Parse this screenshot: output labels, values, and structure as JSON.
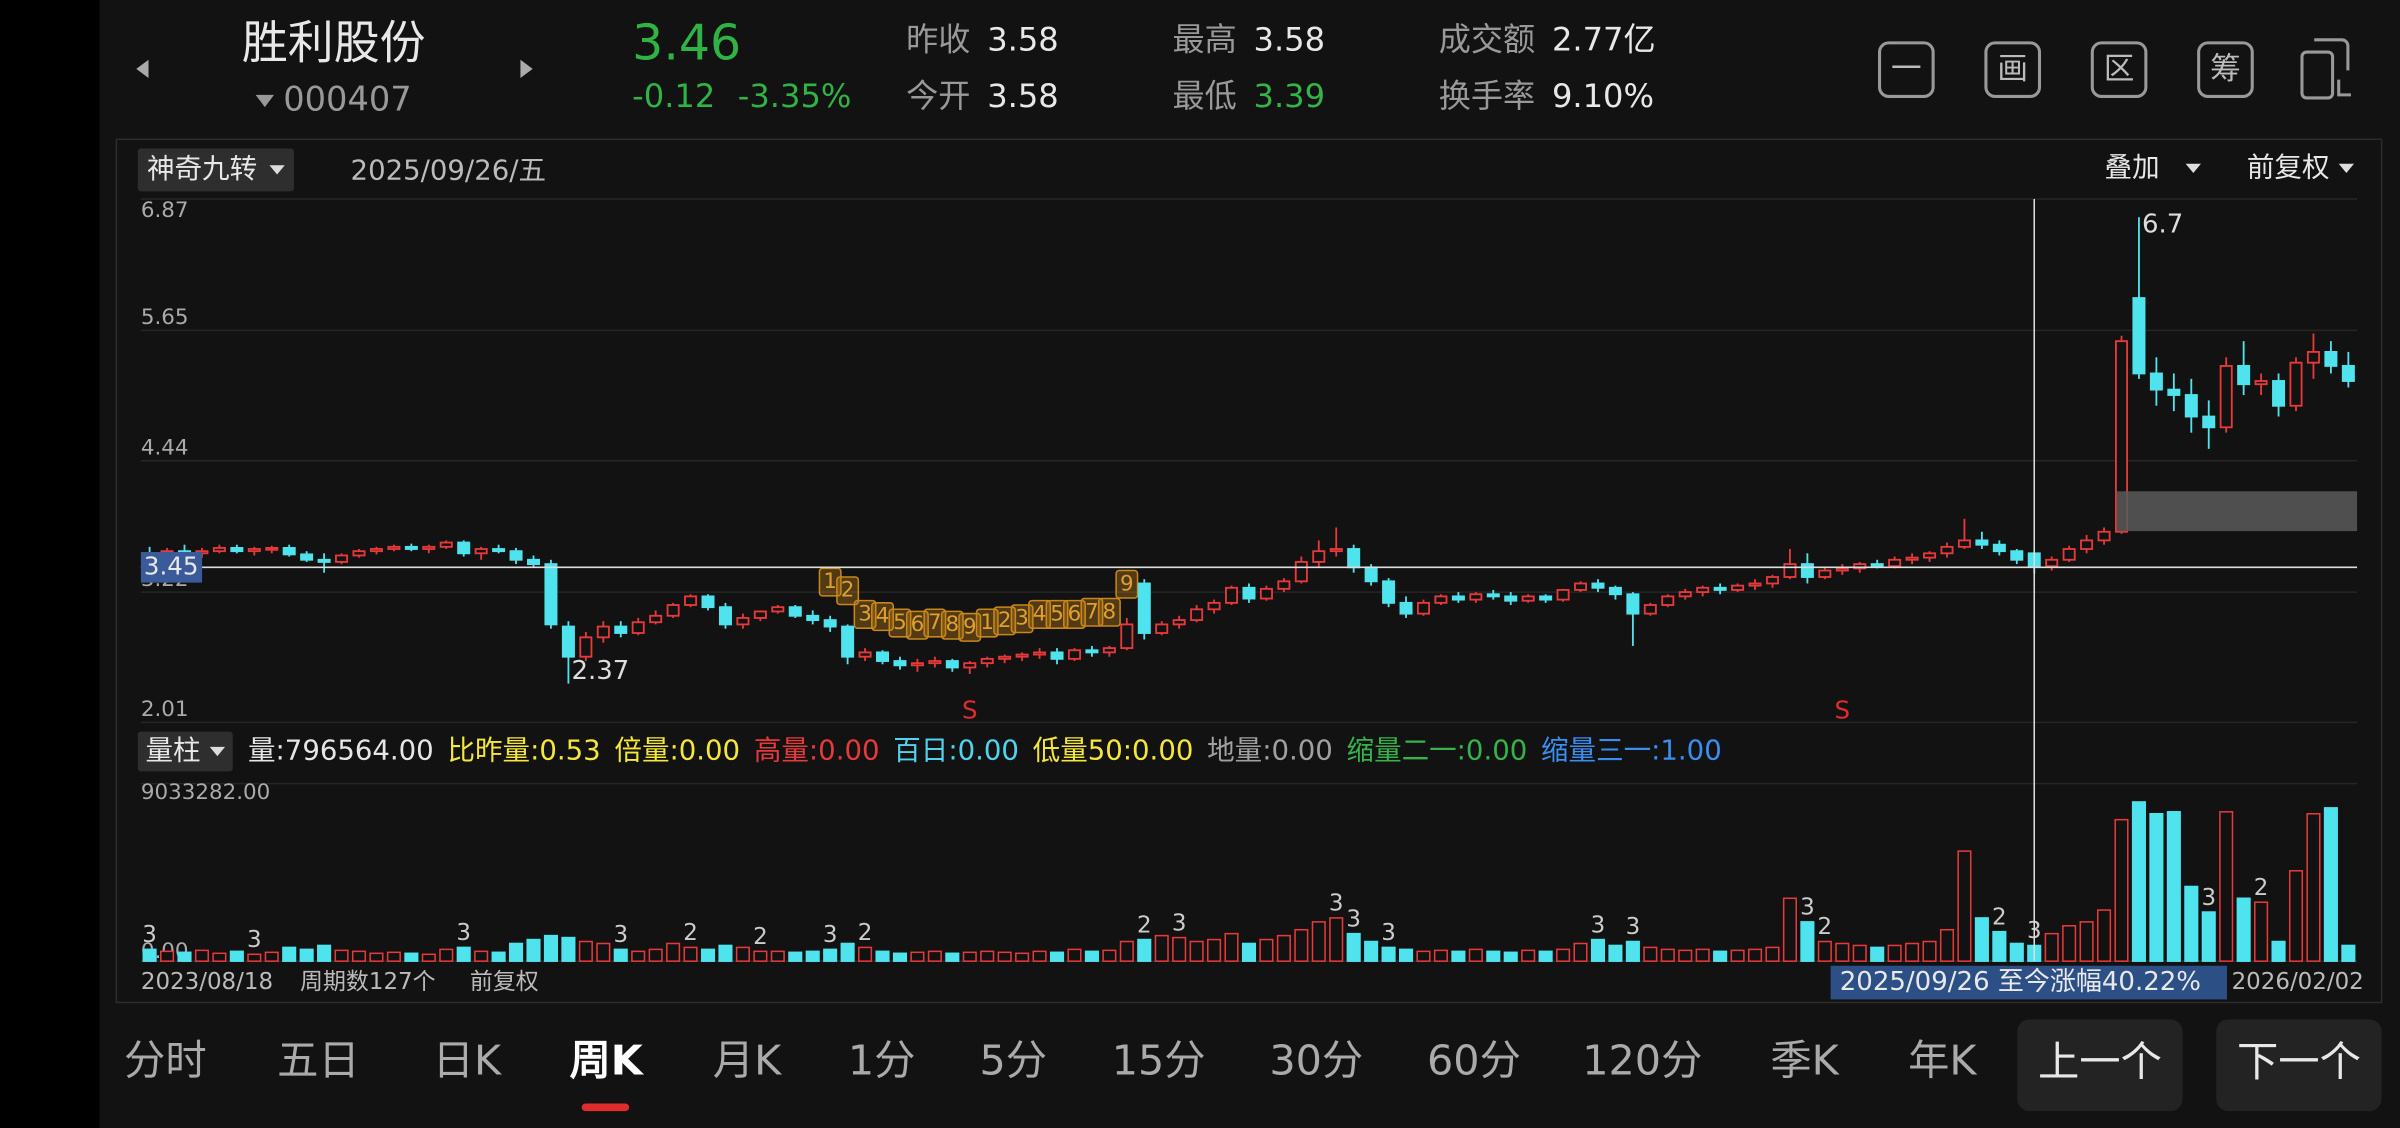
{
  "header": {
    "name": "胜利股份",
    "code": "000407",
    "price": "3.46",
    "change": "-0.12",
    "change_pct": "-3.35%",
    "stats": [
      {
        "label": "昨收",
        "value": "3.58",
        "color": "#e8e8e8"
      },
      {
        "label": "今开",
        "value": "3.58",
        "color": "#e8e8e8"
      },
      {
        "label": "最高",
        "value": "3.58",
        "color": "#e8e8e8"
      },
      {
        "label": "最低",
        "value": "3.39",
        "color": "#35b34a"
      },
      {
        "label": "成交额",
        "value": "2.77亿",
        "color": "#e8e8e8"
      },
      {
        "label": "换手率",
        "value": "9.10%",
        "color": "#e8e8e8"
      }
    ],
    "toolbar": [
      "一",
      "画",
      "区",
      "筹"
    ]
  },
  "chart": {
    "type": "candlestick",
    "indicator": "神奇九转",
    "date": "2025/09/26/五",
    "overlay": "叠加",
    "adjust": "前复权",
    "ylim": [
      2.01,
      6.87
    ],
    "yticks": [
      2.01,
      3.22,
      4.44,
      5.65,
      6.87
    ],
    "grid": true,
    "up_color": "#e8393a",
    "down_color": "#4fe3ee",
    "crosshair_price": 3.45,
    "high_label": 6.7,
    "low_label": 2.37,
    "candles": [
      [
        3.58,
        3.64,
        3.52,
        3.55
      ],
      [
        3.55,
        3.63,
        3.52,
        3.6
      ],
      [
        3.6,
        3.66,
        3.55,
        3.58
      ],
      [
        3.58,
        3.63,
        3.54,
        3.6
      ],
      [
        3.6,
        3.66,
        3.58,
        3.63
      ],
      [
        3.63,
        3.66,
        3.58,
        3.6
      ],
      [
        3.6,
        3.64,
        3.56,
        3.62
      ],
      [
        3.62,
        3.65,
        3.58,
        3.63
      ],
      [
        3.63,
        3.66,
        3.55,
        3.57
      ],
      [
        3.57,
        3.6,
        3.5,
        3.52
      ],
      [
        3.52,
        3.58,
        3.4,
        3.5
      ],
      [
        3.5,
        3.58,
        3.48,
        3.56
      ],
      [
        3.56,
        3.62,
        3.54,
        3.6
      ],
      [
        3.6,
        3.64,
        3.57,
        3.62
      ],
      [
        3.62,
        3.66,
        3.6,
        3.64
      ],
      [
        3.64,
        3.67,
        3.6,
        3.62
      ],
      [
        3.62,
        3.66,
        3.58,
        3.64
      ],
      [
        3.64,
        3.7,
        3.62,
        3.68
      ],
      [
        3.68,
        3.7,
        3.55,
        3.58
      ],
      [
        3.58,
        3.64,
        3.52,
        3.62
      ],
      [
        3.62,
        3.66,
        3.58,
        3.6
      ],
      [
        3.6,
        3.63,
        3.48,
        3.52
      ],
      [
        3.52,
        3.56,
        3.45,
        3.48
      ],
      [
        3.48,
        3.52,
        2.88,
        2.92
      ],
      [
        2.9,
        2.95,
        2.37,
        2.62
      ],
      [
        2.62,
        2.85,
        2.58,
        2.8
      ],
      [
        2.8,
        2.95,
        2.75,
        2.9
      ],
      [
        2.9,
        2.95,
        2.8,
        2.84
      ],
      [
        2.84,
        2.98,
        2.82,
        2.94
      ],
      [
        2.94,
        3.05,
        2.92,
        3.0
      ],
      [
        3.0,
        3.12,
        2.98,
        3.1
      ],
      [
        3.1,
        3.2,
        3.08,
        3.18
      ],
      [
        3.18,
        3.2,
        3.05,
        3.08
      ],
      [
        3.08,
        3.12,
        2.88,
        2.92
      ],
      [
        2.92,
        3.02,
        2.88,
        2.98
      ],
      [
        2.98,
        3.05,
        2.95,
        3.04
      ],
      [
        3.04,
        3.1,
        3.02,
        3.08
      ],
      [
        3.08,
        3.1,
        2.98,
        3.0
      ],
      [
        3.0,
        3.05,
        2.92,
        2.96
      ],
      [
        2.96,
        3.0,
        2.85,
        2.9
      ],
      [
        2.9,
        2.92,
        2.55,
        2.62
      ],
      [
        2.62,
        2.7,
        2.58,
        2.66
      ],
      [
        2.66,
        2.68,
        2.55,
        2.58
      ],
      [
        2.58,
        2.62,
        2.5,
        2.54
      ],
      [
        2.54,
        2.6,
        2.48,
        2.56
      ],
      [
        2.56,
        2.62,
        2.52,
        2.58
      ],
      [
        2.58,
        2.6,
        2.48,
        2.52
      ],
      [
        2.52,
        2.58,
        2.46,
        2.56
      ],
      [
        2.56,
        2.62,
        2.52,
        2.6
      ],
      [
        2.6,
        2.64,
        2.56,
        2.62
      ],
      [
        2.62,
        2.66,
        2.58,
        2.64
      ],
      [
        2.64,
        2.7,
        2.6,
        2.66
      ],
      [
        2.66,
        2.7,
        2.55,
        2.6
      ],
      [
        2.6,
        2.7,
        2.58,
        2.68
      ],
      [
        2.68,
        2.72,
        2.62,
        2.66
      ],
      [
        2.66,
        2.72,
        2.62,
        2.7
      ],
      [
        2.7,
        2.98,
        2.68,
        2.92
      ],
      [
        3.3,
        3.34,
        2.78,
        2.84
      ],
      [
        2.84,
        2.95,
        2.82,
        2.92
      ],
      [
        2.92,
        3.0,
        2.88,
        2.96
      ],
      [
        2.96,
        3.1,
        2.94,
        3.06
      ],
      [
        3.06,
        3.15,
        3.02,
        3.12
      ],
      [
        3.12,
        3.28,
        3.1,
        3.26
      ],
      [
        3.26,
        3.3,
        3.12,
        3.16
      ],
      [
        3.16,
        3.28,
        3.14,
        3.25
      ],
      [
        3.25,
        3.35,
        3.22,
        3.32
      ],
      [
        3.32,
        3.55,
        3.3,
        3.5
      ],
      [
        3.5,
        3.7,
        3.45,
        3.6
      ],
      [
        3.6,
        3.82,
        3.55,
        3.62
      ],
      [
        3.62,
        3.66,
        3.4,
        3.45
      ],
      [
        3.45,
        3.48,
        3.28,
        3.32
      ],
      [
        3.32,
        3.35,
        3.08,
        3.12
      ],
      [
        3.12,
        3.18,
        2.98,
        3.02
      ],
      [
        3.02,
        3.15,
        3.0,
        3.12
      ],
      [
        3.12,
        3.2,
        3.1,
        3.18
      ],
      [
        3.18,
        3.22,
        3.12,
        3.15
      ],
      [
        3.15,
        3.22,
        3.12,
        3.2
      ],
      [
        3.2,
        3.24,
        3.15,
        3.18
      ],
      [
        3.18,
        3.22,
        3.1,
        3.14
      ],
      [
        3.14,
        3.2,
        3.12,
        3.18
      ],
      [
        3.18,
        3.2,
        3.12,
        3.15
      ],
      [
        3.15,
        3.25,
        3.13,
        3.24
      ],
      [
        3.24,
        3.32,
        3.22,
        3.3
      ],
      [
        3.3,
        3.34,
        3.22,
        3.26
      ],
      [
        3.26,
        3.28,
        3.15,
        3.2
      ],
      [
        3.2,
        3.22,
        2.72,
        3.02
      ],
      [
        3.02,
        3.12,
        3.0,
        3.1
      ],
      [
        3.1,
        3.2,
        3.08,
        3.18
      ],
      [
        3.18,
        3.25,
        3.15,
        3.22
      ],
      [
        3.22,
        3.28,
        3.18,
        3.26
      ],
      [
        3.26,
        3.3,
        3.2,
        3.24
      ],
      [
        3.24,
        3.3,
        3.22,
        3.28
      ],
      [
        3.28,
        3.34,
        3.24,
        3.3
      ],
      [
        3.3,
        3.38,
        3.26,
        3.36
      ],
      [
        3.36,
        3.62,
        3.34,
        3.48
      ],
      [
        3.48,
        3.58,
        3.3,
        3.36
      ],
      [
        3.36,
        3.45,
        3.34,
        3.42
      ],
      [
        3.42,
        3.48,
        3.38,
        3.44
      ],
      [
        3.44,
        3.5,
        3.4,
        3.48
      ],
      [
        3.48,
        3.52,
        3.44,
        3.46
      ],
      [
        3.46,
        3.55,
        3.44,
        3.52
      ],
      [
        3.52,
        3.58,
        3.48,
        3.54
      ],
      [
        3.54,
        3.6,
        3.5,
        3.58
      ],
      [
        3.58,
        3.68,
        3.54,
        3.64
      ],
      [
        3.64,
        3.9,
        3.62,
        3.7
      ],
      [
        3.7,
        3.78,
        3.62,
        3.66
      ],
      [
        3.66,
        3.7,
        3.56,
        3.6
      ],
      [
        3.6,
        3.62,
        3.48,
        3.52
      ],
      [
        3.58,
        3.58,
        3.39,
        3.46
      ],
      [
        3.46,
        3.55,
        3.42,
        3.52
      ],
      [
        3.52,
        3.65,
        3.5,
        3.62
      ],
      [
        3.62,
        3.75,
        3.58,
        3.7
      ],
      [
        3.7,
        3.82,
        3.66,
        3.78
      ],
      [
        3.78,
        5.6,
        3.76,
        5.55
      ],
      [
        5.95,
        6.7,
        5.2,
        5.25
      ],
      [
        5.25,
        5.4,
        4.95,
        5.1
      ],
      [
        5.1,
        5.25,
        4.9,
        5.05
      ],
      [
        5.05,
        5.2,
        4.7,
        4.85
      ],
      [
        4.85,
        5.0,
        4.55,
        4.75
      ],
      [
        4.75,
        5.4,
        4.7,
        5.32
      ],
      [
        5.32,
        5.55,
        5.05,
        5.15
      ],
      [
        5.15,
        5.25,
        5.05,
        5.18
      ],
      [
        5.18,
        5.25,
        4.85,
        4.95
      ],
      [
        4.95,
        5.4,
        4.9,
        5.35
      ],
      [
        5.35,
        5.62,
        5.2,
        5.45
      ],
      [
        5.45,
        5.55,
        5.25,
        5.32
      ],
      [
        5.32,
        5.45,
        5.12,
        5.18
      ]
    ],
    "td_labels": [
      null,
      null,
      null,
      null,
      null,
      null,
      null,
      null,
      null,
      null,
      null,
      null,
      null,
      null,
      null,
      null,
      null,
      null,
      null,
      null,
      null,
      null,
      null,
      null,
      null,
      null,
      null,
      null,
      null,
      null,
      null,
      null,
      null,
      null,
      null,
      null,
      null,
      null,
      null,
      "1",
      "2",
      "3",
      "4",
      "5",
      "6",
      "7",
      "8",
      "9",
      "1",
      "2",
      "3",
      "4",
      "5",
      "6",
      "7",
      "8",
      "9",
      null,
      null,
      null,
      null,
      null,
      null,
      null,
      null,
      null,
      null,
      null,
      null,
      null,
      null,
      null,
      null,
      null,
      null,
      null,
      null,
      null,
      null,
      null,
      null,
      null,
      null,
      null,
      null,
      null,
      null,
      null,
      null,
      null,
      null,
      null,
      null,
      null,
      null,
      null,
      null,
      null,
      null,
      null,
      null,
      null,
      null,
      null,
      null,
      null,
      null,
      null,
      null,
      null,
      null,
      null,
      null,
      null,
      null,
      null,
      null,
      null,
      null,
      null,
      null,
      null,
      null,
      null,
      null,
      null,
      null
    ],
    "signals": [
      null,
      null,
      null,
      null,
      null,
      null,
      null,
      null,
      null,
      null,
      null,
      null,
      null,
      null,
      null,
      null,
      null,
      null,
      null,
      null,
      null,
      null,
      null,
      null,
      null,
      null,
      null,
      null,
      null,
      null,
      null,
      null,
      null,
      null,
      null,
      null,
      null,
      null,
      null,
      null,
      null,
      null,
      null,
      null,
      null,
      null,
      null,
      "S",
      null,
      null,
      null,
      null,
      null,
      null,
      null,
      null,
      null,
      null,
      null,
      null,
      null,
      null,
      null,
      null,
      null,
      null,
      null,
      null,
      null,
      null,
      null,
      null,
      null,
      null,
      null,
      null,
      null,
      null,
      null,
      null,
      null,
      null,
      null,
      null,
      null,
      null,
      null,
      null,
      null,
      null,
      null,
      null,
      null,
      null,
      null,
      null,
      null,
      "S",
      null,
      null,
      null,
      null,
      null,
      null,
      null,
      null,
      null,
      null,
      null,
      null,
      null,
      null,
      null,
      null,
      null,
      null,
      null,
      null,
      null,
      null,
      null,
      null,
      null,
      null,
      null,
      null,
      null
    ],
    "start_date": "2023/08/18",
    "period_count": "周期数127个",
    "adjust_note": "前复权",
    "range_note": "2025/09/26 至今涨幅40.22%",
    "end_date": "2026/02/02"
  },
  "volume": {
    "type": "bar",
    "selector": "量柱",
    "indicators": [
      {
        "text": "量:796564.00",
        "color": "#e6e6e6"
      },
      {
        "text": "比昨量:0.53",
        "color": "#f5e63a"
      },
      {
        "text": "倍量:0.00",
        "color": "#f5e63a"
      },
      {
        "text": "高量:0.00",
        "color": "#e8393a"
      },
      {
        "text": "百日:0.00",
        "color": "#4fd3ee"
      },
      {
        "text": "低量50:0.00",
        "color": "#f5e63a"
      },
      {
        "text": "地量:0.00",
        "color": "#a0a0a0"
      },
      {
        "text": "缩量二一:0.00",
        "color": "#35b34a"
      },
      {
        "text": "缩量三一:1.00",
        "color": "#3a8ef0"
      }
    ],
    "ylim": [
      0,
      9033282
    ],
    "yticks": [
      {
        "value": 0,
        "label": "0.00"
      },
      {
        "value": 9033282,
        "label": "9033282.00"
      }
    ],
    "values": [
      600000,
      500000,
      450000,
      550000,
      400000,
      500000,
      350000,
      450000,
      700000,
      600000,
      800000,
      550000,
      500000,
      400000,
      450000,
      400000,
      350000,
      600000,
      700000,
      500000,
      450000,
      900000,
      1100000,
      1300000,
      1200000,
      1000000,
      900000,
      600000,
      500000,
      600000,
      900000,
      700000,
      600000,
      800000,
      700000,
      500000,
      500000,
      450000,
      500000,
      600000,
      900000,
      700000,
      500000,
      400000,
      450000,
      500000,
      400000,
      450000,
      500000,
      450000,
      400000,
      500000,
      450000,
      600000,
      500000,
      550000,
      1000000,
      1100000,
      1300000,
      1200000,
      1000000,
      1100000,
      1400000,
      900000,
      1100000,
      1300000,
      1600000,
      2000000,
      2200000,
      1400000,
      1000000,
      700000,
      600000,
      500000,
      550000,
      500000,
      600000,
      500000,
      450000,
      550000,
      500000,
      600000,
      900000,
      1100000,
      800000,
      1000000,
      700000,
      600000,
      550000,
      600000,
      500000,
      550000,
      600000,
      700000,
      3200000,
      2000000,
      1000000,
      900000,
      800000,
      700000,
      800000,
      900000,
      1000000,
      1600000,
      5600000,
      2200000,
      1500000,
      900000,
      796564,
      1400000,
      1800000,
      2000000,
      2600000,
      7200000,
      8100000,
      7500000,
      7600000,
      3800000,
      2500000,
      7600000,
      3200000,
      3000000,
      1000000,
      4600000,
      7500000,
      7800000,
      800000
    ],
    "count_labels": [
      "3",
      null,
      null,
      null,
      null,
      null,
      "3",
      null,
      null,
      null,
      null,
      null,
      null,
      null,
      null,
      null,
      null,
      null,
      "3",
      null,
      null,
      null,
      null,
      null,
      null,
      null,
      null,
      "3",
      null,
      null,
      null,
      "2",
      null,
      null,
      null,
      "2",
      null,
      null,
      null,
      "3",
      null,
      "2",
      null,
      null,
      null,
      null,
      null,
      null,
      null,
      null,
      null,
      null,
      null,
      null,
      null,
      null,
      null,
      "2",
      null,
      "3",
      null,
      null,
      null,
      null,
      null,
      null,
      null,
      null,
      "3",
      "3",
      null,
      "3",
      null,
      null,
      null,
      null,
      null,
      null,
      null,
      null,
      null,
      null,
      null,
      "3",
      null,
      "3",
      null,
      null,
      null,
      null,
      null,
      null,
      null,
      null,
      null,
      "3",
      "2",
      null,
      null,
      null,
      null,
      null,
      null,
      null,
      null,
      null,
      "2",
      null,
      "3",
      null,
      null,
      null,
      null,
      null,
      null,
      null,
      null,
      null,
      "3",
      null,
      null,
      "2",
      null,
      null,
      null,
      null,
      null
    ]
  },
  "tabs": [
    {
      "text": "分时"
    },
    {
      "text": "五日"
    },
    {
      "text": "日K"
    },
    {
      "text": "周K",
      "selected": true
    },
    {
      "text": "月K"
    },
    {
      "text": "1分"
    },
    {
      "text": "5分"
    },
    {
      "text": "15分"
    },
    {
      "text": "30分"
    },
    {
      "text": "60分"
    },
    {
      "text": "120分"
    },
    {
      "text": "季K"
    },
    {
      "text": "年K"
    }
  ],
  "buttons": [
    "上一个",
    "下一个"
  ]
}
